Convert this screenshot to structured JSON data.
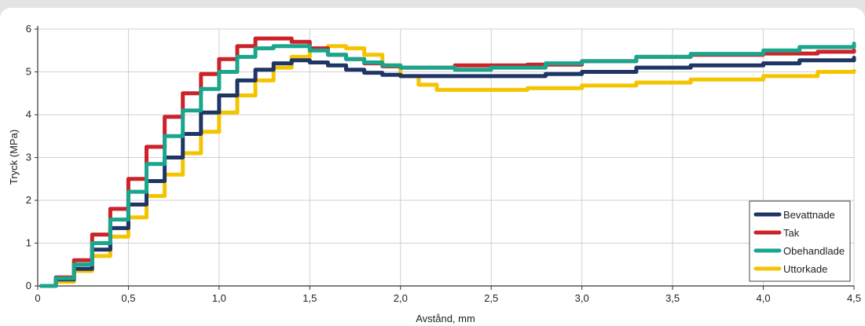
{
  "chart_data": {
    "type": "line",
    "xlabel": "Avstånd, mm",
    "ylabel": "Tryck (MPa)",
    "xlim": [
      0,
      4.5
    ],
    "ylim": [
      0,
      6
    ],
    "x_ticks": [
      0,
      0.5,
      1.0,
      1.5,
      2.0,
      2.5,
      3.0,
      3.5,
      4.0,
      4.5
    ],
    "x_tick_labels": [
      "0",
      "0,5",
      "1,0",
      "1,5",
      "2,0",
      "2,5",
      "3,0",
      "3,5",
      "4,0",
      "4,5"
    ],
    "y_ticks": [
      0,
      1,
      2,
      3,
      4,
      5,
      6
    ],
    "y_tick_labels": [
      "0",
      "1",
      "2",
      "3",
      "4",
      "5",
      "6"
    ],
    "grid": true,
    "legend_position": "bottom-right",
    "series": [
      {
        "name": "Bevattnade",
        "color": "#1f3566",
        "points": [
          [
            0.02,
            0
          ],
          [
            0.1,
            0.15
          ],
          [
            0.2,
            0.4
          ],
          [
            0.3,
            0.85
          ],
          [
            0.4,
            1.35
          ],
          [
            0.5,
            1.9
          ],
          [
            0.6,
            2.45
          ],
          [
            0.7,
            3.0
          ],
          [
            0.8,
            3.55
          ],
          [
            0.9,
            4.05
          ],
          [
            1.0,
            4.45
          ],
          [
            1.1,
            4.8
          ],
          [
            1.2,
            5.05
          ],
          [
            1.3,
            5.2
          ],
          [
            1.4,
            5.27
          ],
          [
            1.5,
            5.22
          ],
          [
            1.6,
            5.15
          ],
          [
            1.7,
            5.05
          ],
          [
            1.8,
            4.98
          ],
          [
            1.9,
            4.93
          ],
          [
            2.0,
            4.9
          ],
          [
            2.5,
            4.9
          ],
          [
            2.8,
            4.95
          ],
          [
            3.0,
            5.0
          ],
          [
            3.3,
            5.1
          ],
          [
            3.6,
            5.15
          ],
          [
            4.0,
            5.2
          ],
          [
            4.2,
            5.27
          ],
          [
            4.5,
            5.33
          ]
        ]
      },
      {
        "name": "Tak",
        "color": "#cc2229",
        "points": [
          [
            0.02,
            0
          ],
          [
            0.1,
            0.2
          ],
          [
            0.2,
            0.6
          ],
          [
            0.3,
            1.2
          ],
          [
            0.4,
            1.8
          ],
          [
            0.5,
            2.5
          ],
          [
            0.6,
            3.25
          ],
          [
            0.7,
            3.95
          ],
          [
            0.8,
            4.5
          ],
          [
            0.9,
            4.95
          ],
          [
            1.0,
            5.3
          ],
          [
            1.1,
            5.6
          ],
          [
            1.2,
            5.78
          ],
          [
            1.3,
            5.78
          ],
          [
            1.4,
            5.7
          ],
          [
            1.5,
            5.55
          ],
          [
            1.6,
            5.4
          ],
          [
            1.7,
            5.3
          ],
          [
            1.8,
            5.2
          ],
          [
            1.9,
            5.13
          ],
          [
            2.0,
            5.1
          ],
          [
            2.3,
            5.15
          ],
          [
            2.7,
            5.17
          ],
          [
            3.0,
            5.25
          ],
          [
            3.3,
            5.35
          ],
          [
            3.6,
            5.4
          ],
          [
            4.0,
            5.43
          ],
          [
            4.3,
            5.47
          ],
          [
            4.5,
            5.5
          ]
        ]
      },
      {
        "name": "Obehandlade",
        "color": "#1aa58d",
        "points": [
          [
            0.02,
            0
          ],
          [
            0.1,
            0.18
          ],
          [
            0.2,
            0.5
          ],
          [
            0.3,
            1.0
          ],
          [
            0.4,
            1.55
          ],
          [
            0.5,
            2.2
          ],
          [
            0.6,
            2.85
          ],
          [
            0.7,
            3.5
          ],
          [
            0.8,
            4.1
          ],
          [
            0.9,
            4.6
          ],
          [
            1.0,
            5.0
          ],
          [
            1.1,
            5.35
          ],
          [
            1.2,
            5.55
          ],
          [
            1.3,
            5.6
          ],
          [
            1.4,
            5.6
          ],
          [
            1.5,
            5.5
          ],
          [
            1.6,
            5.4
          ],
          [
            1.7,
            5.3
          ],
          [
            1.8,
            5.22
          ],
          [
            1.9,
            5.15
          ],
          [
            2.0,
            5.1
          ],
          [
            2.3,
            5.05
          ],
          [
            2.5,
            5.1
          ],
          [
            2.8,
            5.2
          ],
          [
            3.0,
            5.25
          ],
          [
            3.3,
            5.35
          ],
          [
            3.6,
            5.42
          ],
          [
            4.0,
            5.5
          ],
          [
            4.2,
            5.58
          ],
          [
            4.5,
            5.66
          ]
        ]
      },
      {
        "name": "Uttorkade",
        "color": "#f5c400",
        "points": [
          [
            0.02,
            0
          ],
          [
            0.1,
            0.1
          ],
          [
            0.2,
            0.35
          ],
          [
            0.3,
            0.7
          ],
          [
            0.4,
            1.15
          ],
          [
            0.5,
            1.6
          ],
          [
            0.6,
            2.1
          ],
          [
            0.7,
            2.6
          ],
          [
            0.8,
            3.1
          ],
          [
            0.9,
            3.6
          ],
          [
            1.0,
            4.05
          ],
          [
            1.1,
            4.45
          ],
          [
            1.2,
            4.8
          ],
          [
            1.3,
            5.1
          ],
          [
            1.4,
            5.35
          ],
          [
            1.5,
            5.55
          ],
          [
            1.6,
            5.6
          ],
          [
            1.7,
            5.55
          ],
          [
            1.8,
            5.4
          ],
          [
            1.9,
            5.15
          ],
          [
            2.0,
            4.9
          ],
          [
            2.1,
            4.7
          ],
          [
            2.2,
            4.58
          ],
          [
            2.4,
            4.58
          ],
          [
            2.7,
            4.62
          ],
          [
            3.0,
            4.68
          ],
          [
            3.3,
            4.75
          ],
          [
            3.6,
            4.82
          ],
          [
            4.0,
            4.9
          ],
          [
            4.3,
            5.0
          ],
          [
            4.5,
            5.02
          ]
        ]
      }
    ]
  }
}
